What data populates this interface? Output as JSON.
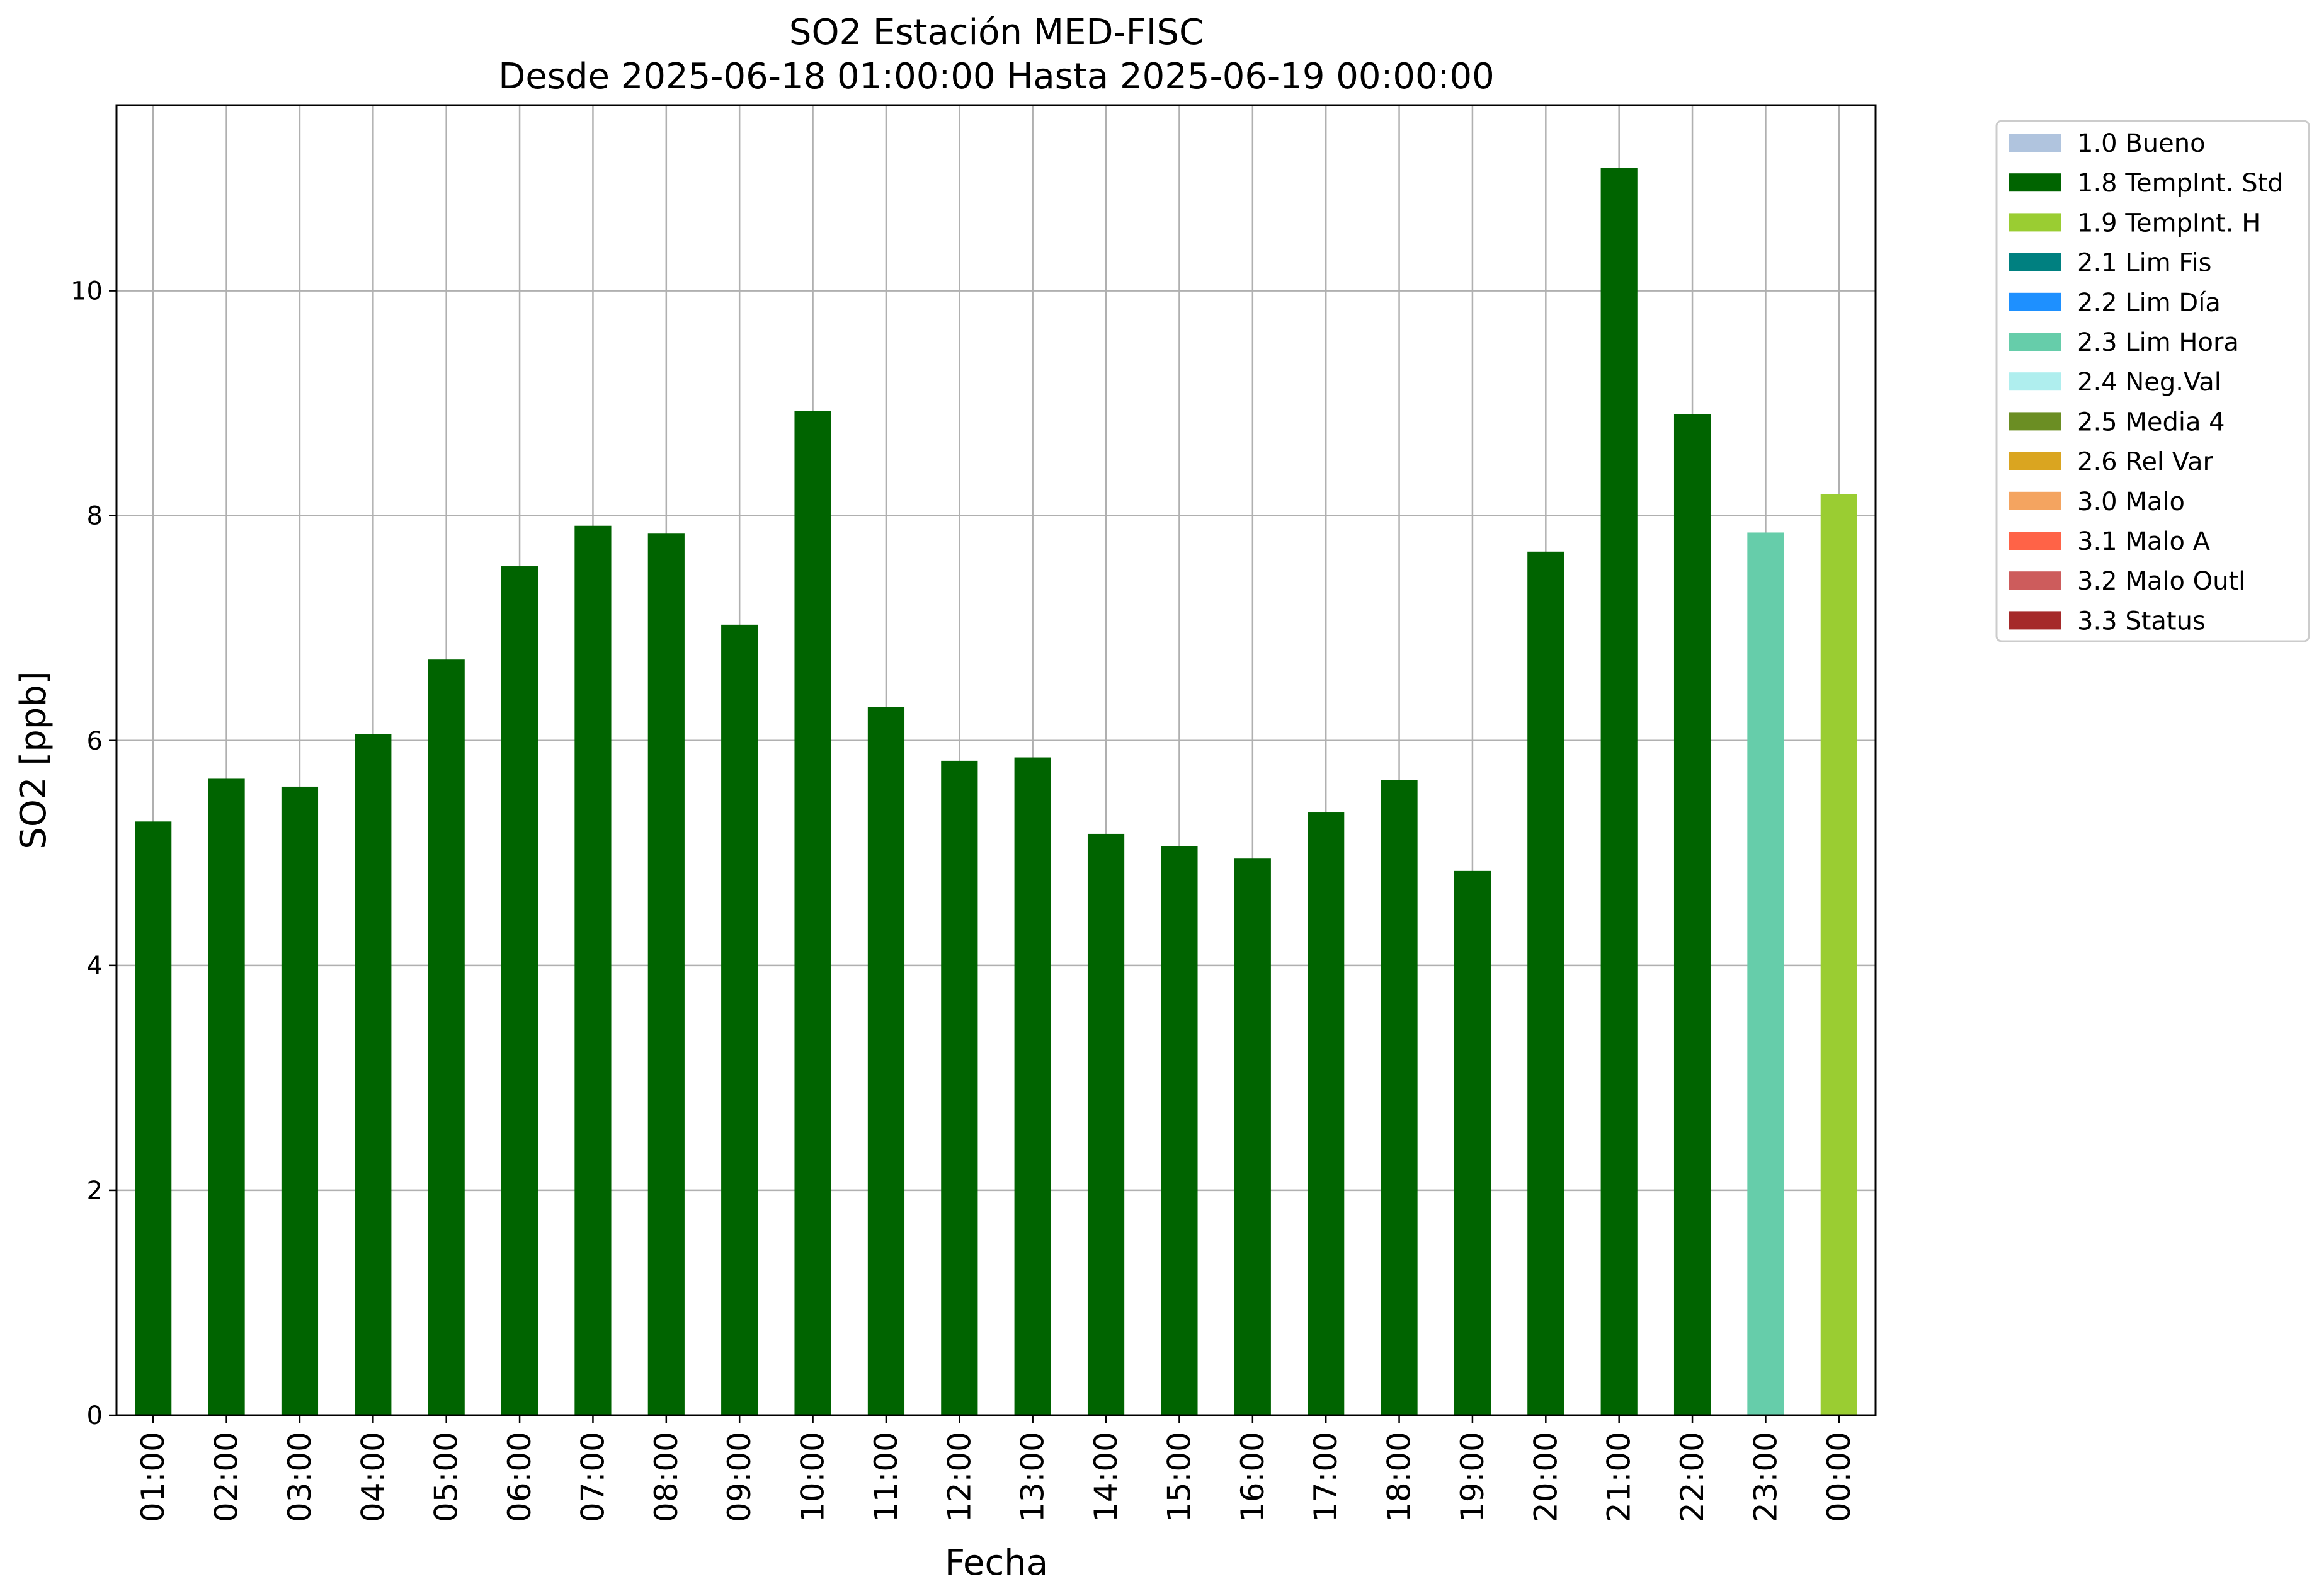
{
  "chart_data": {
    "type": "bar",
    "title": "SO2 Estación MED-FISC",
    "subtitle": "Desde 2025-06-18 01:00:00 Hasta 2025-06-19 00:00:00",
    "xlabel": "Fecha",
    "ylabel": "SO2 [ppb]",
    "ylim": [
      0,
      11.65
    ],
    "yticks": [
      0,
      2,
      4,
      6,
      8,
      10
    ],
    "grid": true,
    "legend_position": "outside-right-top",
    "categories": [
      "01:00",
      "02:00",
      "03:00",
      "04:00",
      "05:00",
      "06:00",
      "07:00",
      "08:00",
      "09:00",
      "10:00",
      "11:00",
      "12:00",
      "13:00",
      "14:00",
      "15:00",
      "16:00",
      "17:00",
      "18:00",
      "19:00",
      "20:00",
      "21:00",
      "22:00",
      "23:00",
      "00:00"
    ],
    "values": [
      5.28,
      5.66,
      5.59,
      6.06,
      6.72,
      7.55,
      7.91,
      7.84,
      7.03,
      8.93,
      6.3,
      5.82,
      5.85,
      5.17,
      5.06,
      4.95,
      5.36,
      5.65,
      4.84,
      7.68,
      11.09,
      8.9,
      7.85,
      8.19
    ],
    "bar_flags": [
      "1.8 TempInt. Std",
      "1.8 TempInt. Std",
      "1.8 TempInt. Std",
      "1.8 TempInt. Std",
      "1.8 TempInt. Std",
      "1.8 TempInt. Std",
      "1.8 TempInt. Std",
      "1.8 TempInt. Std",
      "1.8 TempInt. Std",
      "1.8 TempInt. Std",
      "1.8 TempInt. Std",
      "1.8 TempInt. Std",
      "1.8 TempInt. Std",
      "1.8 TempInt. Std",
      "1.8 TempInt. Std",
      "1.8 TempInt. Std",
      "1.8 TempInt. Std",
      "1.8 TempInt. Std",
      "1.8 TempInt. Std",
      "1.8 TempInt. Std",
      "1.8 TempInt. Std",
      "1.8 TempInt. Std",
      "2.3 Lim Hora",
      "1.9 TempInt. H"
    ],
    "legend": [
      {
        "label": "1.0 Bueno",
        "color": "#b0c4de"
      },
      {
        "label": "1.8 TempInt. Std",
        "color": "#006400"
      },
      {
        "label": "1.9 TempInt. H",
        "color": "#9acd32"
      },
      {
        "label": "2.1 Lim Fis",
        "color": "#008080"
      },
      {
        "label": "2.2 Lim Día",
        "color": "#1e90ff"
      },
      {
        "label": "2.3 Lim Hora",
        "color": "#66cdaa"
      },
      {
        "label": "2.4 Neg.Val",
        "color": "#afeeee"
      },
      {
        "label": "2.5 Media 4",
        "color": "#6b8e23"
      },
      {
        "label": "2.6 Rel Var",
        "color": "#daa520"
      },
      {
        "label": "3.0 Malo",
        "color": "#f4a460"
      },
      {
        "label": "3.1 Malo A",
        "color": "#ff6347"
      },
      {
        "label": "3.2 Malo Outl",
        "color": "#cd5c5c"
      },
      {
        "label": "3.3 Status",
        "color": "#a52a2a"
      }
    ]
  }
}
